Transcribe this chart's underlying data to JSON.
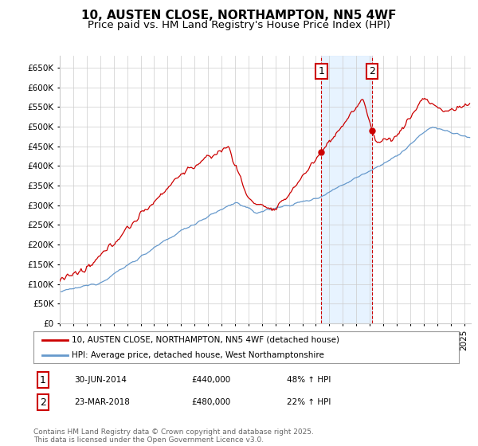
{
  "title": "10, AUSTEN CLOSE, NORTHAMPTON, NN5 4WF",
  "subtitle": "Price paid vs. HM Land Registry's House Price Index (HPI)",
  "ylim": [
    0,
    680000
  ],
  "yticks": [
    0,
    50000,
    100000,
    150000,
    200000,
    250000,
    300000,
    350000,
    400000,
    450000,
    500000,
    550000,
    600000,
    650000
  ],
  "sale1_year": 2014,
  "sale1_month": 6,
  "sale1_price": 440000,
  "sale1_label": "1",
  "sale1_info": "30-JUN-2014",
  "sale1_pct": "48% ↑ HPI",
  "sale2_year": 2018,
  "sale2_month": 3,
  "sale2_price": 480000,
  "sale2_label": "2",
  "sale2_info": "23-MAR-2018",
  "sale2_pct": "22% ↑ HPI",
  "line1_color": "#cc0000",
  "line2_color": "#6699cc",
  "shade_color": "#ddeeff",
  "marker_box_color": "#cc0000",
  "legend_line1": "10, AUSTEN CLOSE, NORTHAMPTON, NN5 4WF (detached house)",
  "legend_line2": "HPI: Average price, detached house, West Northamptonshire",
  "footer": "Contains HM Land Registry data © Crown copyright and database right 2025.\nThis data is licensed under the Open Government Licence v3.0.",
  "background_color": "#ffffff",
  "grid_color": "#cccccc",
  "title_fontsize": 11,
  "subtitle_fontsize": 9.5,
  "tick_fontsize": 7.5,
  "legend_fontsize": 7.5,
  "footer_fontsize": 6.5
}
